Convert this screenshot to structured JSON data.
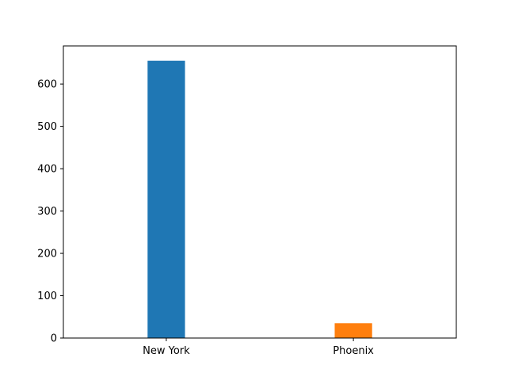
{
  "chart_data": {
    "type": "bar",
    "categories": [
      "New York",
      "Phoenix"
    ],
    "values": [
      655,
      35
    ],
    "colors": [
      "#1f77b4",
      "#ff7f0e"
    ],
    "title": "",
    "xlabel": "",
    "ylabel": "",
    "ylim": [
      0,
      690
    ],
    "yticks": [
      0,
      100,
      200,
      300,
      400,
      500,
      600
    ],
    "ytick_labels": [
      "0",
      "100",
      "200",
      "300",
      "400",
      "500",
      "600"
    ],
    "grid": false,
    "legend": "none"
  }
}
